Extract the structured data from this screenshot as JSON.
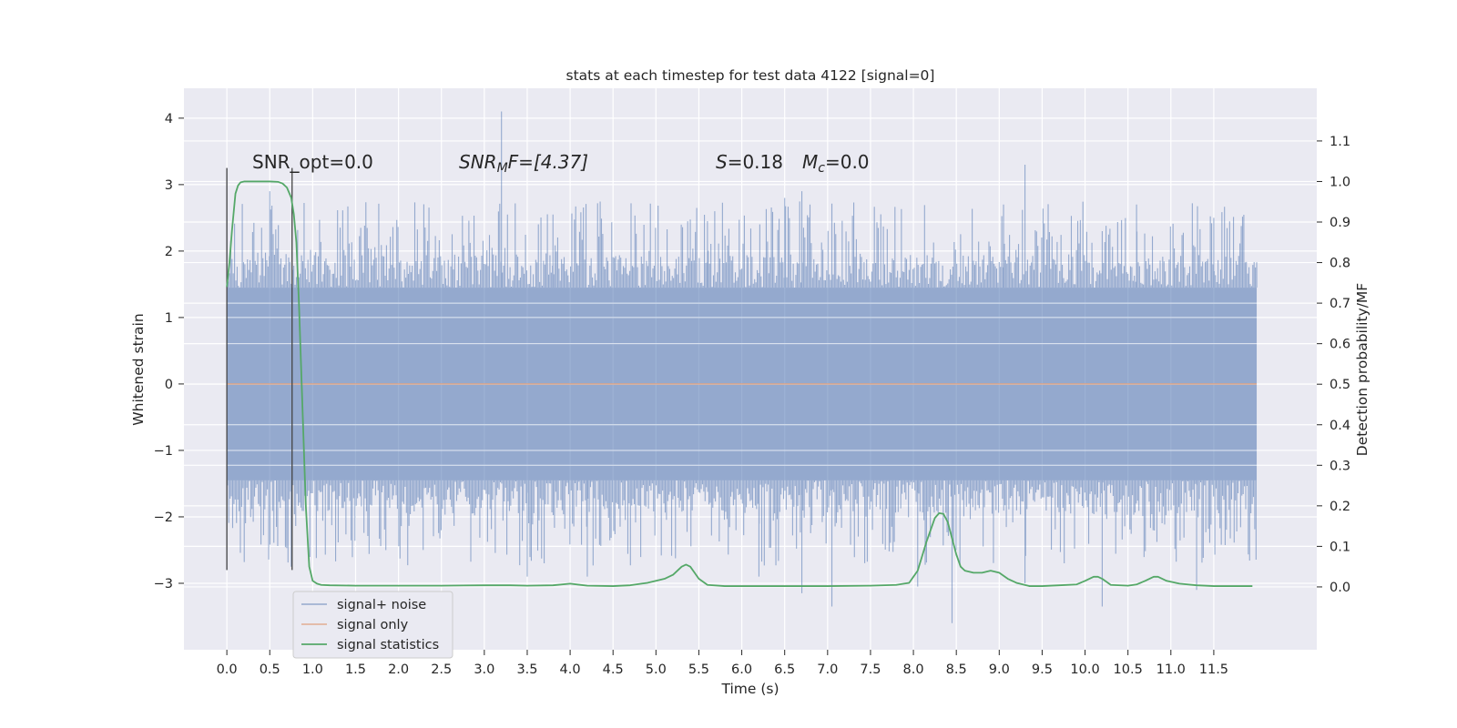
{
  "chart_data": {
    "type": "line",
    "title": "stats at each timestep for test data 4122 [signal=0]",
    "xlabel": "Time (s)",
    "ylabel": "Whitened strain",
    "y2label": "Detection probability/MF",
    "xlim": [
      -0.5,
      12.7
    ],
    "ylim": [
      -4.0,
      4.45
    ],
    "y2lim": [
      -0.155,
      1.23
    ],
    "x_ticks": [
      0.0,
      0.5,
      1.0,
      1.5,
      2.0,
      2.5,
      3.0,
      3.5,
      4.0,
      4.5,
      5.0,
      5.5,
      6.0,
      6.5,
      7.0,
      7.5,
      8.0,
      8.5,
      9.0,
      9.5,
      10.0,
      10.5,
      11.0,
      11.5
    ],
    "x_tick_labels": [
      "0.0",
      "0.5",
      "1.0",
      "1.5",
      "2.0",
      "2.5",
      "3.0",
      "3.5",
      "4.0",
      "4.5",
      "5.0",
      "5.5",
      "6.0",
      "6.5",
      "7.0",
      "7.5",
      "8.0",
      "8.5",
      "9.0",
      "9.5",
      "10.0",
      "10.5",
      "11.0",
      "11.5"
    ],
    "y_ticks": [
      4,
      3,
      2,
      1,
      0,
      -1,
      -2,
      -3
    ],
    "y_tick_labels": [
      "4",
      "3",
      "2",
      "1",
      "0",
      "−1",
      "−2",
      "−3"
    ],
    "y2_ticks": [
      1.1,
      1.0,
      0.9,
      0.8,
      0.7,
      0.6,
      0.5,
      0.4,
      0.3,
      0.2,
      0.1,
      0.0
    ],
    "y2_tick_labels": [
      "1.1",
      "1.0",
      "0.9",
      "0.8",
      "0.7",
      "0.6",
      "0.5",
      "0.4",
      "0.3",
      "0.2",
      "0.1",
      "0.0"
    ],
    "annotations": {
      "snr_opt": "SNR_opt=0.0",
      "snr_mf_main": "SNR",
      "snr_mf_sub": "M",
      "snr_mf_rest": "F=[4.37]",
      "s_var": "S",
      "s_rest": "=0.18",
      "mc_main": "M",
      "mc_sub": "c",
      "mc_rest": "=0.0"
    },
    "legend": {
      "placement": "lower-left",
      "entries": [
        "signal+ noise",
        "signal only",
        "signal statistics"
      ]
    },
    "grid": true,
    "series": [
      {
        "name": "signal+ noise",
        "axis": "left",
        "color": "#4c72b0",
        "time_range": [
          0.0,
          12.0
        ],
        "envelope_typical": 1.45,
        "peaks_high": [
          [
            0.0,
            3.25
          ],
          [
            0.5,
            2.9
          ],
          [
            3.2,
            4.1
          ],
          [
            3.8,
            2.55
          ],
          [
            5.6,
            2.45
          ],
          [
            6.5,
            2.8
          ],
          [
            6.7,
            2.9
          ],
          [
            9.3,
            3.3
          ],
          [
            9.05,
            2.7
          ],
          [
            10.2,
            2.3
          ],
          [
            10.6,
            2.7
          ],
          [
            11.5,
            2.5
          ]
        ],
        "peaks_low": [
          [
            0.0,
            -2.8
          ],
          [
            0.75,
            -2.75
          ],
          [
            3.5,
            -2.9
          ],
          [
            4.2,
            -2.9
          ],
          [
            6.2,
            -2.9
          ],
          [
            6.7,
            -3.15
          ],
          [
            7.05,
            -3.35
          ],
          [
            8.05,
            -3.05
          ],
          [
            8.45,
            -3.6
          ],
          [
            9.3,
            -3.0
          ],
          [
            10.2,
            -3.35
          ],
          [
            11.3,
            -3.1
          ]
        ]
      },
      {
        "name": "signal only",
        "axis": "left",
        "color": "#dd8452",
        "x": [
          0.0,
          12.0
        ],
        "y": [
          0.0,
          0.0
        ]
      },
      {
        "name": "signal statistics",
        "axis": "right",
        "color": "#55a868",
        "x": [
          0.0,
          0.03,
          0.06,
          0.1,
          0.13,
          0.16,
          0.2,
          0.25,
          0.3,
          0.4,
          0.5,
          0.6,
          0.65,
          0.7,
          0.72,
          0.75,
          0.78,
          0.81,
          0.84,
          0.88,
          0.92,
          0.96,
          1.0,
          1.05,
          1.1,
          1.2,
          1.5,
          2.0,
          2.5,
          3.0,
          3.3,
          3.5,
          3.8,
          4.0,
          4.2,
          4.5,
          4.7,
          4.9,
          5.0,
          5.1,
          5.2,
          5.3,
          5.35,
          5.4,
          5.5,
          5.6,
          5.8,
          6.0,
          6.5,
          7.0,
          7.5,
          7.8,
          7.95,
          8.05,
          8.15,
          8.25,
          8.3,
          8.35,
          8.4,
          8.45,
          8.5,
          8.55,
          8.6,
          8.7,
          8.8,
          8.9,
          9.0,
          9.1,
          9.2,
          9.35,
          9.5,
          9.7,
          9.9,
          10.0,
          10.1,
          10.15,
          10.2,
          10.3,
          10.5,
          10.6,
          10.7,
          10.8,
          10.85,
          10.95,
          11.1,
          11.3,
          11.5,
          11.7,
          11.95
        ],
        "y": [
          0.74,
          0.8,
          0.88,
          0.97,
          0.99,
          0.998,
          1.0,
          1.0,
          1.0,
          1.0,
          1.0,
          0.999,
          0.995,
          0.985,
          0.975,
          0.96,
          0.92,
          0.85,
          0.7,
          0.45,
          0.2,
          0.05,
          0.015,
          0.008,
          0.005,
          0.004,
          0.003,
          0.003,
          0.003,
          0.004,
          0.004,
          0.003,
          0.004,
          0.008,
          0.003,
          0.002,
          0.004,
          0.01,
          0.015,
          0.02,
          0.03,
          0.05,
          0.055,
          0.05,
          0.02,
          0.005,
          0.002,
          0.002,
          0.002,
          0.002,
          0.003,
          0.005,
          0.01,
          0.04,
          0.11,
          0.17,
          0.182,
          0.18,
          0.16,
          0.12,
          0.08,
          0.05,
          0.04,
          0.035,
          0.035,
          0.04,
          0.035,
          0.02,
          0.01,
          0.002,
          0.002,
          0.004,
          0.006,
          0.015,
          0.025,
          0.025,
          0.02,
          0.005,
          0.003,
          0.006,
          0.015,
          0.025,
          0.025,
          0.015,
          0.008,
          0.004,
          0.002,
          0.002,
          0.002
        ]
      }
    ]
  }
}
